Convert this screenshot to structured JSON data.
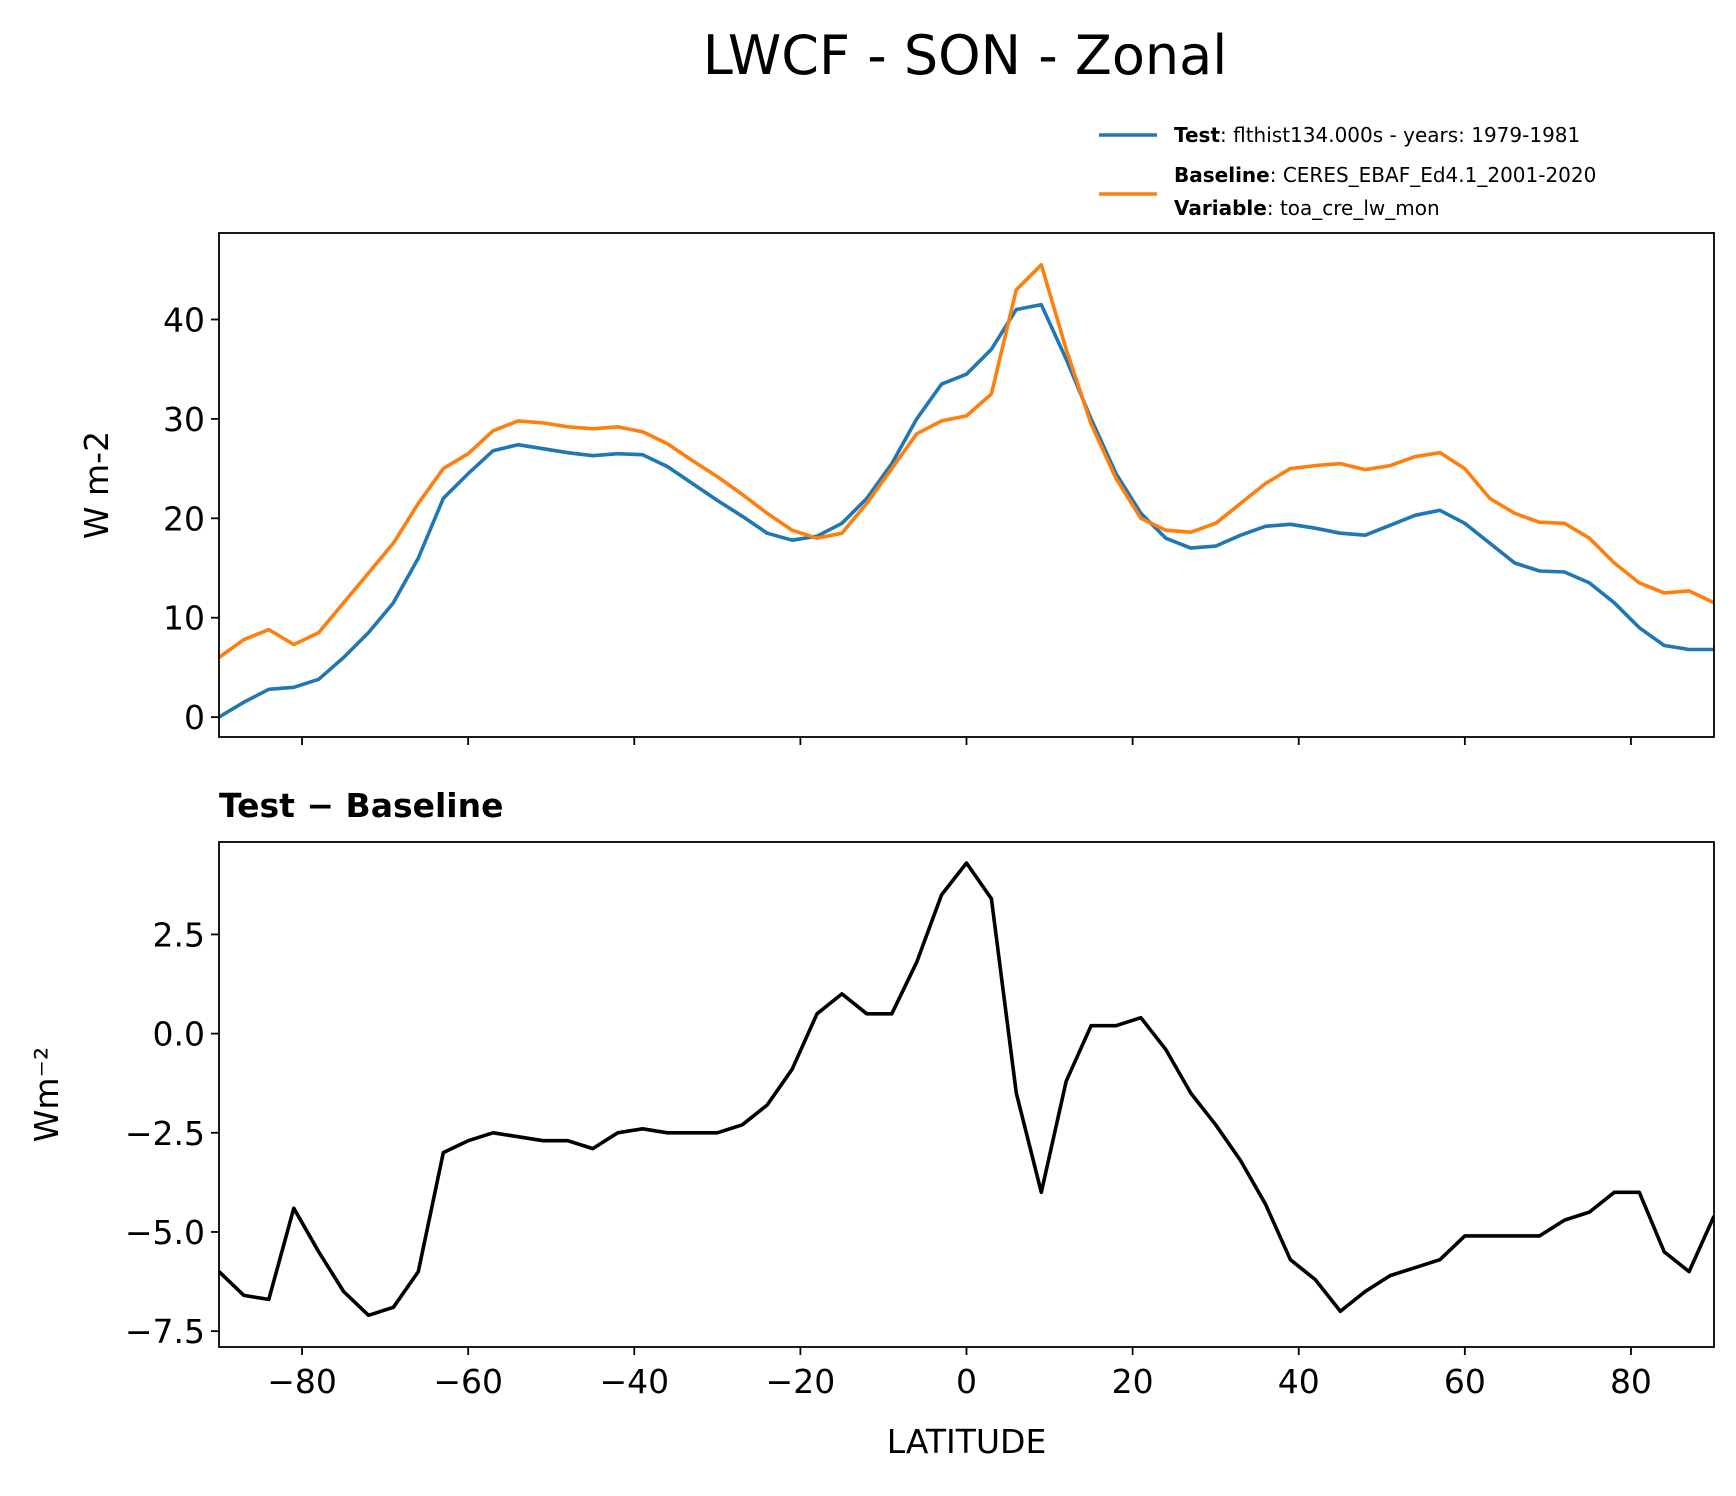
{
  "chart_data": [
    {
      "type": "line",
      "title": "LWCF - SON - Zonal",
      "ylabel": "W m-2",
      "x": [
        -90,
        -87,
        -84,
        -81,
        -78,
        -75,
        -72,
        -69,
        -66,
        -63,
        -60,
        -57,
        -54,
        -51,
        -48,
        -45,
        -42,
        -39,
        -36,
        -33,
        -30,
        -27,
        -24,
        -21,
        -18,
        -15,
        -12,
        -9,
        -6,
        -3,
        0,
        3,
        6,
        9,
        12,
        15,
        18,
        21,
        24,
        27,
        30,
        33,
        36,
        39,
        42,
        45,
        48,
        51,
        54,
        57,
        60,
        63,
        66,
        69,
        72,
        75,
        78,
        81,
        84,
        87,
        90
      ],
      "series": [
        {
          "name": "Test",
          "description": ": flthist134.000s - years: 1979-1981",
          "color": "#1f77b4",
          "values": [
            0,
            1.5,
            2.8,
            3,
            3.8,
            6,
            8.5,
            11.5,
            16,
            22,
            24.5,
            26.8,
            27.4,
            27,
            26.6,
            26.3,
            26.5,
            26.4,
            25.2,
            23.5,
            21.8,
            20.2,
            18.5,
            17.8,
            18.2,
            19.5,
            22,
            25.5,
            30,
            33.5,
            34.5,
            37,
            41,
            41.5,
            36,
            30,
            24.5,
            20.5,
            18,
            17,
            17.2,
            18.3,
            19.2,
            19.4,
            19,
            18.5,
            18.3,
            19.3,
            20.3,
            20.8,
            19.5,
            17.5,
            15.5,
            14.7,
            14.6,
            13.5,
            11.5,
            9,
            7.2,
            6.8,
            6.8
          ]
        },
        {
          "name": "Baseline",
          "description": ": CERES_EBAF_Ed4.1_2001-2020",
          "color": "#ff7f0e",
          "values": [
            6,
            7.8,
            8.8,
            7.3,
            8.5,
            11.5,
            14.5,
            17.5,
            21.5,
            25,
            26.5,
            28.8,
            29.8,
            29.6,
            29.2,
            29,
            29.2,
            28.7,
            27.5,
            25.8,
            24.2,
            22.4,
            20.5,
            18.8,
            18,
            18.5,
            21.5,
            25,
            28.5,
            29.8,
            30.3,
            32.5,
            43,
            45.5,
            37,
            29.5,
            24,
            20,
            18.8,
            18.6,
            19.5,
            21.5,
            23.5,
            25,
            25.3,
            25.5,
            24.9,
            25.3,
            26.2,
            26.6,
            25,
            22,
            20.5,
            19.6,
            19.5,
            18,
            15.5,
            13.5,
            12.5,
            12.7,
            11.5
          ]
        }
      ],
      "legend_note": {
        "name": "Variable",
        "description": ": toa_cre_lw_mon"
      },
      "legend": "upper right",
      "xlim": [
        -90,
        90
      ],
      "xticks": [
        -80,
        -60,
        -40,
        -20,
        0,
        20,
        40,
        60,
        80
      ],
      "ylim": [
        -2,
        48.7
      ],
      "yticks": [
        0,
        10,
        20,
        30,
        40
      ]
    },
    {
      "type": "line",
      "title": "Test − Baseline",
      "xlabel": "LATITUDE",
      "ylabel": "Wm⁻²",
      "x": [
        -90,
        -87,
        -84,
        -81,
        -78,
        -75,
        -72,
        -69,
        -66,
        -63,
        -60,
        -57,
        -54,
        -51,
        -48,
        -45,
        -42,
        -39,
        -36,
        -33,
        -30,
        -27,
        -24,
        -21,
        -18,
        -15,
        -12,
        -9,
        -6,
        -3,
        0,
        3,
        6,
        9,
        12,
        15,
        18,
        21,
        24,
        27,
        30,
        33,
        36,
        39,
        42,
        45,
        48,
        51,
        54,
        57,
        60,
        63,
        66,
        69,
        72,
        75,
        78,
        81,
        84,
        87,
        90
      ],
      "series": [
        {
          "color": "#000000",
          "values": [
            -6,
            -6.6,
            -6.7,
            -4.4,
            -5.5,
            -6.5,
            -7.1,
            -6.9,
            -6,
            -3,
            -2.7,
            -2.5,
            -2.6,
            -2.7,
            -2.7,
            -2.9,
            -2.5,
            -2.4,
            -2.5,
            -2.5,
            -2.5,
            -2.3,
            -1.8,
            -0.9,
            0.5,
            1,
            0.5,
            0.5,
            1.8,
            3.5,
            4.3,
            3.4,
            -1.5,
            -4,
            -1.2,
            0.2,
            0.2,
            0.4,
            -0.4,
            -1.5,
            -2.3,
            -3.2,
            -4.3,
            -5.7,
            -6.2,
            -7,
            -6.5,
            -6.1,
            -5.9,
            -5.7,
            -5.1,
            -5.1,
            -5.1,
            -5.1,
            -4.7,
            -4.5,
            -4,
            -4,
            -5.5,
            -6,
            -4.6
          ]
        }
      ],
      "xlim": [
        -90,
        90
      ],
      "xticks": [
        {
          "value": -80,
          "label": "−80"
        },
        {
          "value": -60,
          "label": "−60"
        },
        {
          "value": -40,
          "label": "−40"
        },
        {
          "value": -20,
          "label": "−20"
        },
        0,
        20,
        40,
        60,
        80
      ],
      "ylim": [
        -7.9,
        4.83
      ],
      "yticks": [
        {
          "value": -7.5,
          "label": "−7.5"
        },
        {
          "value": -5,
          "label": "−5.0"
        },
        {
          "value": -2.5,
          "label": "−2.5"
        },
        {
          "value": 0,
          "label": "0.0"
        },
        2.5
      ]
    }
  ]
}
